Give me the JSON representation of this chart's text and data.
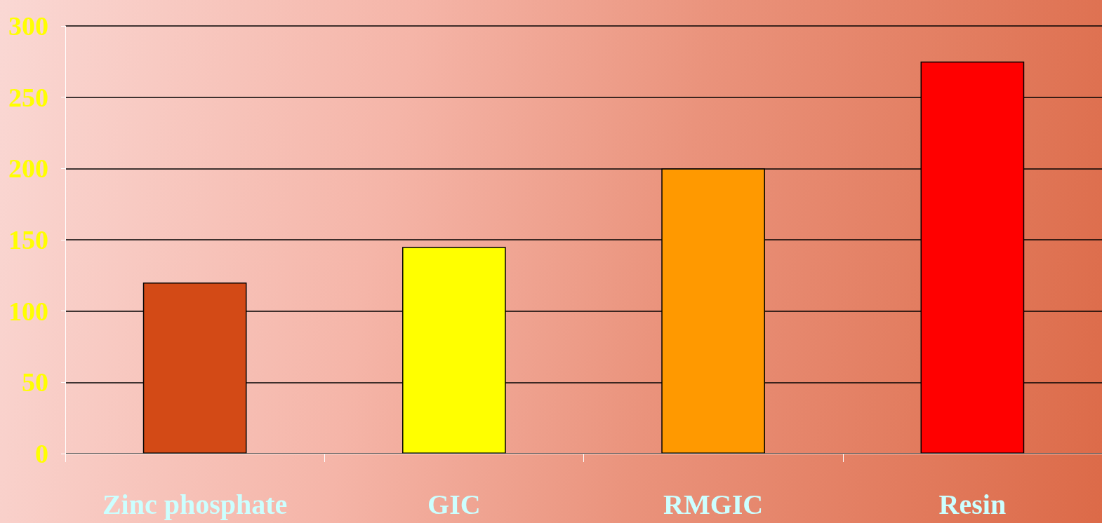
{
  "chart_data": {
    "type": "bar",
    "categories": [
      "Zinc phosphate",
      "GIC",
      "RMGIC",
      "Resin"
    ],
    "values": [
      120,
      145,
      200,
      275
    ],
    "colors": [
      "#d34a16",
      "#ffff00",
      "#ff9900",
      "#ff0000"
    ],
    "ylim": [
      0,
      300
    ],
    "yticks": [
      0,
      50,
      100,
      150,
      200,
      250,
      300
    ],
    "grid": "y"
  }
}
